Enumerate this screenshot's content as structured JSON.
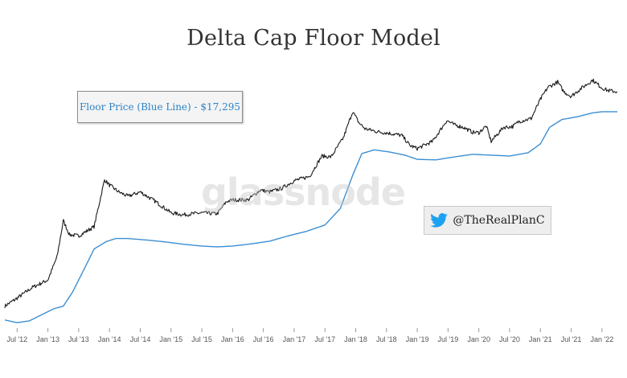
{
  "title": "Delta Cap Floor Model",
  "callout": "Floor Price (Blue Line) - $17,295",
  "watermark": "glassnode",
  "social": {
    "handle": "@TheRealPlanC",
    "icon": "twitter-bird-icon"
  },
  "colors": {
    "price": "#1a1a1a",
    "floor": "#3b8fd4",
    "callout_text": "#2b83c9"
  },
  "chart_data": {
    "type": "line",
    "title": "Delta Cap Floor Model",
    "x_range": [
      2012.3,
      2022.25
    ],
    "y_scale": "log",
    "y_range": [
      2.2,
      90000
    ],
    "y_axis_visible": false,
    "grid": false,
    "x_ticks": [
      "Jul '12",
      "Jan '13",
      "Jul '13",
      "Jan '14",
      "Jul '14",
      "Jan '15",
      "Jul '15",
      "Jan '16",
      "Jul '16",
      "Jan '17",
      "Jul '17",
      "Jan '18",
      "Jul '18",
      "Jan '19",
      "Jul '19",
      "Jan '20",
      "Jul '20",
      "Jan '21",
      "Jul '21",
      "Jan '22"
    ],
    "x_tick_values": [
      2012.5,
      2013.0,
      2013.5,
      2014.0,
      2014.5,
      2015.0,
      2015.5,
      2016.0,
      2016.5,
      2017.0,
      2017.5,
      2018.0,
      2018.5,
      2019.0,
      2019.5,
      2020.0,
      2020.5,
      2021.0,
      2021.5,
      2022.0
    ],
    "series": [
      {
        "name": "Price",
        "points": [
          [
            2012.3,
            5
          ],
          [
            2012.5,
            7
          ],
          [
            2012.75,
            11
          ],
          [
            2013.0,
            15
          ],
          [
            2013.15,
            40
          ],
          [
            2013.25,
            180
          ],
          [
            2013.35,
            100
          ],
          [
            2013.5,
            95
          ],
          [
            2013.75,
            140
          ],
          [
            2013.92,
            1000
          ],
          [
            2014.0,
            800
          ],
          [
            2014.15,
            600
          ],
          [
            2014.3,
            500
          ],
          [
            2014.5,
            600
          ],
          [
            2014.75,
            400
          ],
          [
            2015.0,
            250
          ],
          [
            2015.2,
            230
          ],
          [
            2015.5,
            250
          ],
          [
            2015.75,
            240
          ],
          [
            2015.9,
            400
          ],
          [
            2016.0,
            430
          ],
          [
            2016.25,
            430
          ],
          [
            2016.45,
            650
          ],
          [
            2016.6,
            600
          ],
          [
            2016.8,
            700
          ],
          [
            2017.0,
            960
          ],
          [
            2017.25,
            1150
          ],
          [
            2017.45,
            2700
          ],
          [
            2017.6,
            2600
          ],
          [
            2017.8,
            5800
          ],
          [
            2017.95,
            17500
          ],
          [
            2018.05,
            11000
          ],
          [
            2018.15,
            8500
          ],
          [
            2018.35,
            7500
          ],
          [
            2018.55,
            7000
          ],
          [
            2018.75,
            6400
          ],
          [
            2018.88,
            4200
          ],
          [
            2019.0,
            3700
          ],
          [
            2019.25,
            5000
          ],
          [
            2019.48,
            12000
          ],
          [
            2019.6,
            10000
          ],
          [
            2019.75,
            9000
          ],
          [
            2019.9,
            7300
          ],
          [
            2020.0,
            7200
          ],
          [
            2020.12,
            9500
          ],
          [
            2020.2,
            5000
          ],
          [
            2020.4,
            9000
          ],
          [
            2020.55,
            9300
          ],
          [
            2020.65,
            11500
          ],
          [
            2020.85,
            13000
          ],
          [
            2021.0,
            29000
          ],
          [
            2021.12,
            48000
          ],
          [
            2021.28,
            60000
          ],
          [
            2021.38,
            40000
          ],
          [
            2021.5,
            33000
          ],
          [
            2021.65,
            45000
          ],
          [
            2021.85,
            65000
          ],
          [
            2022.0,
            47000
          ],
          [
            2022.1,
            42000
          ],
          [
            2022.25,
            40000
          ]
        ]
      },
      {
        "name": "Floor Price",
        "points": [
          [
            2012.3,
            2.8
          ],
          [
            2012.5,
            2.5
          ],
          [
            2012.7,
            2.7
          ],
          [
            2012.9,
            3.5
          ],
          [
            2013.1,
            4.5
          ],
          [
            2013.25,
            5
          ],
          [
            2013.4,
            9
          ],
          [
            2013.6,
            25
          ],
          [
            2013.75,
            55
          ],
          [
            2013.95,
            75
          ],
          [
            2014.1,
            85
          ],
          [
            2014.3,
            85
          ],
          [
            2014.6,
            80
          ],
          [
            2014.9,
            74
          ],
          [
            2015.2,
            67
          ],
          [
            2015.5,
            62
          ],
          [
            2015.75,
            60
          ],
          [
            2016.0,
            62
          ],
          [
            2016.3,
            68
          ],
          [
            2016.6,
            76
          ],
          [
            2016.9,
            95
          ],
          [
            2017.2,
            115
          ],
          [
            2017.5,
            150
          ],
          [
            2017.75,
            300
          ],
          [
            2017.95,
            1200
          ],
          [
            2018.1,
            3000
          ],
          [
            2018.3,
            3500
          ],
          [
            2018.55,
            3200
          ],
          [
            2018.8,
            2800
          ],
          [
            2019.0,
            2350
          ],
          [
            2019.3,
            2300
          ],
          [
            2019.6,
            2600
          ],
          [
            2019.9,
            2900
          ],
          [
            2020.2,
            2800
          ],
          [
            2020.5,
            2700
          ],
          [
            2020.8,
            3100
          ],
          [
            2021.0,
            4500
          ],
          [
            2021.15,
            9000
          ],
          [
            2021.35,
            12500
          ],
          [
            2021.6,
            14000
          ],
          [
            2021.85,
            16500
          ],
          [
            2022.0,
            17300
          ],
          [
            2022.25,
            17295
          ]
        ]
      }
    ]
  }
}
